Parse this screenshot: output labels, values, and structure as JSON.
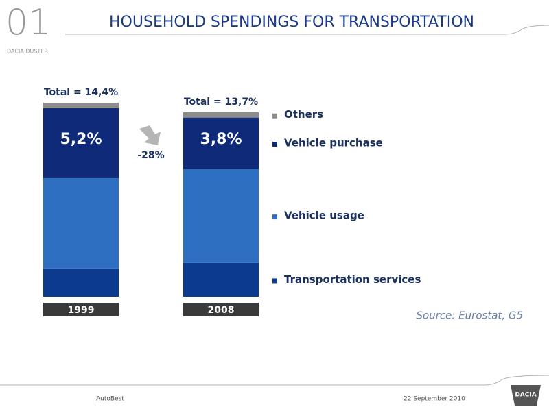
{
  "header": {
    "number": "01",
    "subtitle": "DACIA DUSTER",
    "title": "HOUSEHOLD SPENDINGS FOR TRANSPORTATION"
  },
  "chart_data": {
    "type": "bar",
    "stacked": true,
    "categories": [
      "1999",
      "2008"
    ],
    "totals": [
      14.4,
      13.7
    ],
    "total_labels": [
      "Total = 14,4%",
      "Total = 13,7%"
    ],
    "series": [
      {
        "name": "Transportation services",
        "color": "#0b3a8e",
        "values": [
          2.1,
          2.5
        ]
      },
      {
        "name": "Vehicle usage",
        "color": "#2f6fc2",
        "values": [
          6.7,
          7.0
        ]
      },
      {
        "name": "Vehicle purchase",
        "color": "#0e2a78",
        "values": [
          5.2,
          3.8
        ],
        "value_labels": [
          "5,2%",
          "3,8%"
        ]
      },
      {
        "name": "Others",
        "color": "#8c8c8c",
        "values": [
          0.4,
          0.4
        ]
      }
    ],
    "annotation": "-28%",
    "source": "Source: Eurostat, G5"
  },
  "footer": {
    "left": "AutoBest",
    "date": "22 September 2010",
    "logo": "DACIA"
  }
}
